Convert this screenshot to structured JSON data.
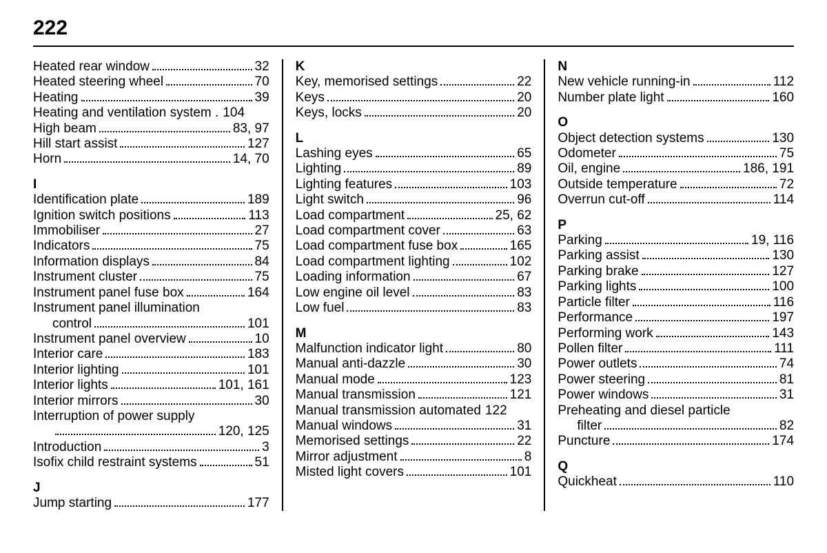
{
  "page_number": "222",
  "columns": [
    {
      "groups": [
        {
          "letter": null,
          "entries": [
            {
              "label": "Heated rear window",
              "pages": "32"
            },
            {
              "label": "Heated steering wheel",
              "pages": "70"
            },
            {
              "label": "Heating",
              "pages": "39"
            },
            {
              "label": "Heating and ventilation system .",
              "pages": "104",
              "nodots": true
            },
            {
              "label": "High beam",
              "pages": "83, 97"
            },
            {
              "label": "Hill start assist",
              "pages": "127"
            },
            {
              "label": "Horn",
              "pages": "14, 70"
            }
          ]
        },
        {
          "letter": "I",
          "entries": [
            {
              "label": "Identification plate",
              "pages": "189"
            },
            {
              "label": "Ignition switch positions",
              "pages": "113"
            },
            {
              "label": "Immobiliser",
              "pages": "27"
            },
            {
              "label": "Indicators",
              "pages": "75"
            },
            {
              "label": "Information displays",
              "pages": "84"
            },
            {
              "label": "Instrument cluster",
              "pages": "75"
            },
            {
              "label": "Instrument panel fuse box",
              "pages": "164"
            },
            {
              "label": "Instrument panel illumination",
              "cont": "control",
              "pages": "101"
            },
            {
              "label": "Instrument panel overview",
              "pages": "10"
            },
            {
              "label": "Interior care",
              "pages": "183"
            },
            {
              "label": "Interior lighting",
              "pages": "101"
            },
            {
              "label": "Interior lights",
              "pages": "101, 161"
            },
            {
              "label": "Interior mirrors",
              "pages": "30"
            },
            {
              "label": "Interruption of power supply",
              "cont": "",
              "pages": "120, 125"
            },
            {
              "label": "Introduction",
              "pages": "3"
            },
            {
              "label": "Isofix child restraint systems",
              "pages": "51"
            }
          ]
        },
        {
          "letter": "J",
          "entries": [
            {
              "label": "Jump starting",
              "pages": "177"
            }
          ]
        }
      ]
    },
    {
      "groups": [
        {
          "letter": "K",
          "entries": [
            {
              "label": "Key, memorised settings",
              "pages": "22"
            },
            {
              "label": "Keys",
              "pages": "20"
            },
            {
              "label": "Keys, locks",
              "pages": "20"
            }
          ]
        },
        {
          "letter": "L",
          "entries": [
            {
              "label": "Lashing eyes",
              "pages": "65"
            },
            {
              "label": "Lighting",
              "pages": "89"
            },
            {
              "label": "Lighting features",
              "pages": "103"
            },
            {
              "label": "Light switch",
              "pages": "96"
            },
            {
              "label": "Load compartment",
              "pages": "25, 62"
            },
            {
              "label": "Load compartment cover",
              "pages": "63"
            },
            {
              "label": "Load compartment fuse box",
              "pages": "165"
            },
            {
              "label": "Load compartment lighting",
              "pages": "102"
            },
            {
              "label": "Loading information",
              "pages": "67"
            },
            {
              "label": "Low engine oil level",
              "pages": "83"
            },
            {
              "label": "Low fuel",
              "pages": "83"
            }
          ]
        },
        {
          "letter": "M",
          "entries": [
            {
              "label": "Malfunction indicator light",
              "pages": "80"
            },
            {
              "label": "Manual anti-dazzle",
              "pages": "30"
            },
            {
              "label": "Manual mode",
              "pages": "123"
            },
            {
              "label": "Manual transmission",
              "pages": "121"
            },
            {
              "label": "Manual transmission automated",
              "pages": "122",
              "nodots": true
            },
            {
              "label": "Manual windows",
              "pages": "31"
            },
            {
              "label": "Memorised settings",
              "pages": "22"
            },
            {
              "label": "Mirror adjustment",
              "pages": "8"
            },
            {
              "label": "Misted light covers",
              "pages": "101"
            }
          ]
        }
      ]
    },
    {
      "groups": [
        {
          "letter": "N",
          "entries": [
            {
              "label": "New vehicle running-in",
              "pages": "112"
            },
            {
              "label": "Number plate light",
              "pages": "160"
            }
          ]
        },
        {
          "letter": "O",
          "entries": [
            {
              "label": "Object detection systems",
              "pages": "130"
            },
            {
              "label": "Odometer",
              "pages": "75"
            },
            {
              "label": "Oil, engine",
              "pages": "186, 191"
            },
            {
              "label": "Outside temperature",
              "pages": "72"
            },
            {
              "label": "Overrun cut-off",
              "pages": "114"
            }
          ]
        },
        {
          "letter": "P",
          "entries": [
            {
              "label": "Parking",
              "pages": "19, 116"
            },
            {
              "label": "Parking assist",
              "pages": "130"
            },
            {
              "label": "Parking brake",
              "pages": "127"
            },
            {
              "label": "Parking lights",
              "pages": "100"
            },
            {
              "label": "Particle filter",
              "pages": "116"
            },
            {
              "label": "Performance",
              "pages": "197"
            },
            {
              "label": "Performing work",
              "pages": "143"
            },
            {
              "label": "Pollen filter",
              "pages": "111"
            },
            {
              "label": "Power outlets",
              "pages": "74"
            },
            {
              "label": "Power steering",
              "pages": "81"
            },
            {
              "label": "Power windows",
              "pages": "31"
            },
            {
              "label": "Preheating and diesel particle",
              "cont": "filter",
              "pages": "82"
            },
            {
              "label": "Puncture",
              "pages": "174"
            }
          ]
        },
        {
          "letter": "Q",
          "entries": [
            {
              "label": "Quickheat",
              "pages": "110"
            }
          ]
        }
      ]
    }
  ]
}
